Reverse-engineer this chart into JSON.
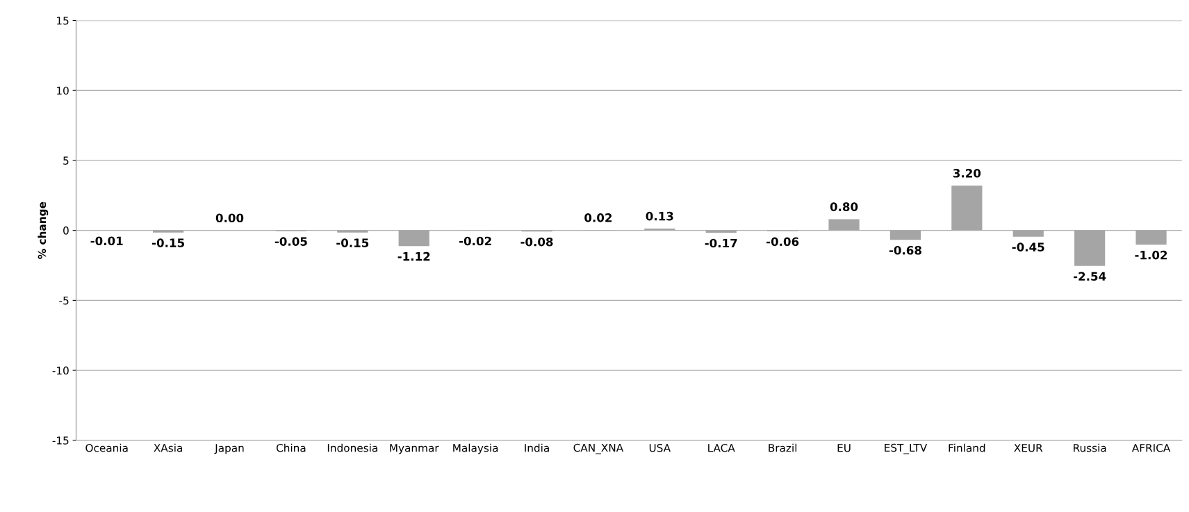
{
  "chart_data": {
    "type": "bar",
    "ylabel": "% change",
    "categories": [
      "Oceania",
      "XAsia",
      "Japan",
      "China",
      "Indonesia",
      "Myanmar",
      "Malaysia",
      "India",
      "CAN_XNA",
      "USA",
      "LACA",
      "Brazil",
      "EU",
      "EST_LTV",
      "Finland",
      "XEUR",
      "Russia",
      "AFRICA"
    ],
    "values": [
      -0.01,
      -0.15,
      0.0,
      -0.05,
      -0.15,
      -1.12,
      -0.02,
      -0.08,
      0.02,
      0.13,
      -0.17,
      -0.06,
      0.8,
      -0.68,
      3.2,
      -0.45,
      -2.54,
      -1.02
    ],
    "color": "#a5a5a5",
    "value_labels": [
      "-0.01",
      "-0.15",
      "0.00",
      "-0.05",
      "-0.15",
      "-1.12",
      "-0.02",
      "-0.08",
      "0.02",
      "0.13",
      "-0.17",
      "-0.06",
      "0.80",
      "-0.68",
      "3.20",
      "-0.45",
      "-2.54",
      "-1.02"
    ],
    "ylim": [
      -15,
      15
    ],
    "yticks": [
      -15,
      -10,
      -5,
      0,
      5,
      10,
      15
    ],
    "grid": "y"
  }
}
